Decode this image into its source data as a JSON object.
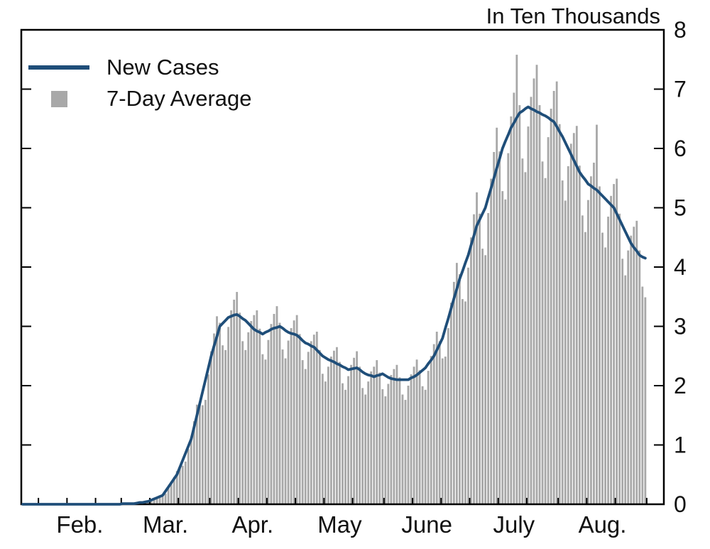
{
  "title": "In Ten Thousands",
  "legend": {
    "items": [
      {
        "label": "New Cases",
        "swatch": "line"
      },
      {
        "label": "7-Day Average",
        "swatch": "square"
      }
    ]
  },
  "colors": {
    "line": "#1f4e79",
    "bar": "#a8a8a8",
    "axis": "#000000",
    "text": "#111111",
    "background": "#ffffff"
  },
  "chart_data": {
    "type": "bar",
    "title": "In Ten Thousands",
    "ylim": [
      0,
      8
    ],
    "yticks": [
      "0",
      "1",
      "2",
      "3",
      "4",
      "5",
      "6",
      "7",
      "8"
    ],
    "grid": false,
    "legend_position": "top-left",
    "x_axis": {
      "unit": "day",
      "lead_month": {
        "days_in_month": 31,
        "first_day": 26
      },
      "months": [
        {
          "label": "Feb.",
          "days": 29
        },
        {
          "label": "Mar.",
          "days": 31
        },
        {
          "label": "Apr.",
          "days": 30
        },
        {
          "label": "May",
          "days": 31
        },
        {
          "label": "June",
          "days": 30
        },
        {
          "label": "July",
          "days": 31
        },
        {
          "label": "Aug.",
          "days": 31
        }
      ],
      "trail_days": 6,
      "minor_tick_days_of_month": [
        1,
        11,
        21
      ]
    },
    "series": [
      {
        "name": "New Cases",
        "type": "line",
        "values": [
          0,
          0,
          0,
          0,
          0,
          0,
          0,
          0,
          0,
          0,
          0,
          0,
          0,
          0,
          0,
          0,
          0,
          0,
          0,
          0,
          0,
          0,
          0,
          0,
          0,
          0,
          0,
          0,
          0,
          0,
          0,
          0,
          0,
          0,
          0,
          0.01,
          0.01,
          0.01,
          0.01,
          0.01,
          0.02,
          0.03,
          0.03,
          0.04,
          0.05,
          0.07,
          0.09,
          0.11,
          0.13,
          0.15,
          0.22,
          0.29,
          0.36,
          0.43,
          0.5,
          0.62,
          0.74,
          0.86,
          0.98,
          1.1,
          1.3,
          1.5,
          1.7,
          1.9,
          2.1,
          2.3,
          2.5,
          2.67,
          2.83,
          3.0,
          3.05,
          3.1,
          3.15,
          3.17,
          3.19,
          3.2,
          3.17,
          3.13,
          3.1,
          3.05,
          3.0,
          2.95,
          2.92,
          2.9,
          2.87,
          2.9,
          2.92,
          2.95,
          2.97,
          2.98,
          3.0,
          2.97,
          2.93,
          2.9,
          2.88,
          2.87,
          2.85,
          2.81,
          2.76,
          2.72,
          2.7,
          2.67,
          2.65,
          2.6,
          2.55,
          2.5,
          2.47,
          2.44,
          2.42,
          2.4,
          2.37,
          2.35,
          2.32,
          2.3,
          2.27,
          2.28,
          2.29,
          2.3,
          2.27,
          2.23,
          2.2,
          2.18,
          2.17,
          2.15,
          2.17,
          2.18,
          2.2,
          2.17,
          2.14,
          2.12,
          2.11,
          2.1,
          2.1,
          2.1,
          2.1,
          2.1,
          2.13,
          2.15,
          2.18,
          2.22,
          2.26,
          2.3,
          2.37,
          2.43,
          2.5,
          2.6,
          2.7,
          2.8,
          2.97,
          3.13,
          3.3,
          3.47,
          3.63,
          3.8,
          3.93,
          4.07,
          4.2,
          4.37,
          4.53,
          4.7,
          4.8,
          4.9,
          5.0,
          5.17,
          5.33,
          5.5,
          5.67,
          5.83,
          6.0,
          6.12,
          6.23,
          6.35,
          6.43,
          6.52,
          6.6,
          6.63,
          6.67,
          6.7,
          6.67,
          6.65,
          6.62,
          6.6,
          6.57,
          6.55,
          6.52,
          6.48,
          6.45,
          6.37,
          6.28,
          6.2,
          6.1,
          6.0,
          5.9,
          5.8,
          5.7,
          5.6,
          5.53,
          5.47,
          5.4,
          5.37,
          5.33,
          5.3,
          5.25,
          5.2,
          5.15,
          5.1,
          5.05,
          5.0,
          4.9,
          4.8,
          4.7,
          4.6,
          4.5,
          4.4,
          4.33,
          4.27,
          4.2,
          4.17,
          4.15
        ]
      },
      {
        "name": "7-Day Average",
        "type": "bar",
        "values": [
          0,
          0,
          0,
          0,
          0,
          0,
          0,
          0,
          0,
          0,
          0,
          0,
          0,
          0,
          0,
          0,
          0,
          0,
          0,
          0,
          0,
          0,
          0,
          0,
          0,
          0,
          0,
          0,
          0,
          0,
          0,
          0,
          0,
          0,
          0,
          0.01,
          0.01,
          0.01,
          0.01,
          0.01,
          0.02,
          0.03,
          0.03,
          0.03,
          0.05,
          0.07,
          0.1,
          0.12,
          0.13,
          0.13,
          0.18,
          0.28,
          0.37,
          0.46,
          0.56,
          0.63,
          0.65,
          0.72,
          0.93,
          1.13,
          1.4,
          1.68,
          1.73,
          1.67,
          1.76,
          2.19,
          2.58,
          2.88,
          3.17,
          3.06,
          2.68,
          2.6,
          2.99,
          3.27,
          3.45,
          3.58,
          3.23,
          2.75,
          2.6,
          2.9,
          3.09,
          3.19,
          3.27,
          2.96,
          2.53,
          2.44,
          2.77,
          3.04,
          3.21,
          3.34,
          3.06,
          2.61,
          2.46,
          2.76,
          2.97,
          3.1,
          3.19,
          2.87,
          2.43,
          2.28,
          2.57,
          2.75,
          2.86,
          2.91,
          2.6,
          2.2,
          2.07,
          2.32,
          2.49,
          2.59,
          2.65,
          2.4,
          2.04,
          1.93,
          2.16,
          2.35,
          2.47,
          2.58,
          2.32,
          1.96,
          1.85,
          2.07,
          2.24,
          2.32,
          2.43,
          2.22,
          1.94,
          1.82,
          2.03,
          2.18,
          2.28,
          2.35,
          2.14,
          1.85,
          1.76,
          2.0,
          2.19,
          2.32,
          2.44,
          2.26,
          1.99,
          1.93,
          2.25,
          2.5,
          2.7,
          2.91,
          2.75,
          2.46,
          2.49,
          2.97,
          3.4,
          3.75,
          4.07,
          3.88,
          3.46,
          3.42,
          3.99,
          4.5,
          4.89,
          5.26,
          4.9,
          4.31,
          4.2,
          4.91,
          5.49,
          5.94,
          6.35,
          5.95,
          5.28,
          5.14,
          5.92,
          6.54,
          6.94,
          7.58,
          6.73,
          5.83,
          5.6,
          6.37,
          6.87,
          7.18,
          7.41,
          6.73,
          5.78,
          5.5,
          6.19,
          6.67,
          6.97,
          7.13,
          6.41,
          5.46,
          5.12,
          5.7,
          6.08,
          6.26,
          6.38,
          5.71,
          4.87,
          4.59,
          5.13,
          5.53,
          5.76,
          6.4,
          5.36,
          4.58,
          4.33,
          4.85,
          5.2,
          5.4,
          5.49,
          4.9,
          4.14,
          3.86,
          4.28,
          4.53,
          4.68,
          4.78,
          4.28,
          3.67,
          3.49,
          0,
          0,
          0,
          0,
          0,
          0
        ]
      }
    ]
  }
}
